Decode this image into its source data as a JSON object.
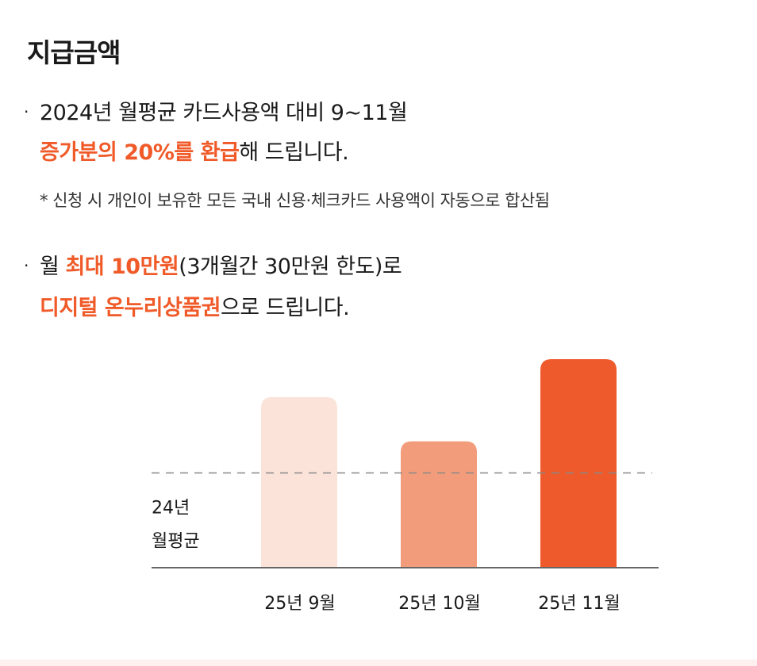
{
  "title": "지급금액",
  "bullet1": {
    "line1": "2024년 월평균 카드사용액 대비 9~11월",
    "highlight": "증가분의 20%를 환급",
    "suffix": "해 드립니다."
  },
  "note": "* 신청 시 개인이 보유한 모든 국내 신용·체크카드 사용액이 자동으로 합산됨",
  "bullet2": {
    "prefix": "월 ",
    "highlight1": "최대 10만원",
    "middle": "(3개월간 30만원 한도)로",
    "highlight2": "디지털 온누리상품권",
    "suffix": "으로 드립니다."
  },
  "chart_data": {
    "type": "bar",
    "categories": [
      "25년 9월",
      "25년 10월",
      "25년 11월"
    ],
    "values": [
      1.35,
      1.0,
      1.65
    ],
    "baseline": {
      "label_line1": "24년",
      "label_line2": "월평균",
      "value": 0.75
    },
    "ylim": [
      0,
      1.65
    ],
    "grid": false,
    "colors": {
      "bars": [
        "#fbe3da",
        "#f29c7b",
        "#ee5a2b"
      ],
      "axis": "#666666",
      "baseline": "#888888",
      "highlight": "#f05a28"
    }
  }
}
